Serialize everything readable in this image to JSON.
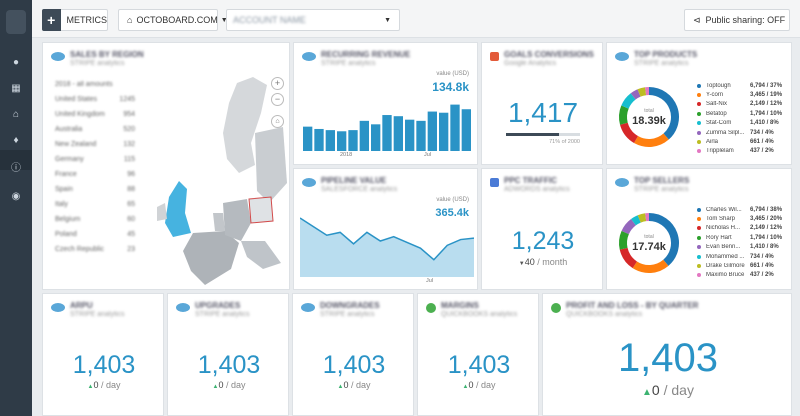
{
  "toolbar": {
    "metrics_label": "METRICS",
    "domain_label": "OCTOBOARD.COM",
    "account_label": "ACCOUNT NAME",
    "sharing_label": "Public sharing: OFF"
  },
  "cards": {
    "map": {
      "title": "SALES BY REGION",
      "subtitle": "STRIPE analytics"
    },
    "revenue": {
      "title": "RECURRING REVENUE",
      "subtitle": "STRIPE analytics",
      "value_label": "value (USD)",
      "value": "134.8k",
      "x_ticks": [
        "2018",
        "Jul"
      ]
    },
    "conversions": {
      "title": "GOALS CONVERSIONS",
      "subtitle": "Google Analytics",
      "value": "1,417",
      "progress_text": "71% of 2000",
      "progress_fraction": 0.71
    },
    "products": {
      "title": "TOP PRODUCTS",
      "subtitle": "STRIPE analytics",
      "total_label": "total",
      "total": "18.39k"
    },
    "pipeline": {
      "title": "PIPELINE VALUE",
      "subtitle": "SALESFORCE analytics",
      "value_label": "value (USD)",
      "value": "365.4k",
      "x_ticks": [
        "Jul"
      ]
    },
    "traffic": {
      "title": "PPC TRAFFIC",
      "subtitle": "ADWORDS analytics",
      "value": "1,243",
      "delta": "40",
      "unit": "/ month"
    },
    "sellers": {
      "title": "TOP SELLERS",
      "subtitle": "STRIPE analytics",
      "total_label": "total",
      "total": "17.74k"
    },
    "arpu": {
      "title": "ARPU",
      "subtitle": "STRIPE analytics",
      "value": "1,403",
      "delta": "0",
      "unit": "/ day"
    },
    "upgrades": {
      "title": "UPGRADES",
      "subtitle": "STRIPE analytics",
      "value": "1,403",
      "delta": "0",
      "unit": "/ day"
    },
    "downgrades": {
      "title": "DOWNGRADES",
      "subtitle": "STRIPE analytics",
      "value": "1,403",
      "delta": "0",
      "unit": "/ day"
    },
    "margins": {
      "title": "MARGINS",
      "subtitle": "QUICKBOOKS analytics",
      "value": "1,403",
      "delta": "0",
      "unit": "/ day"
    },
    "profit": {
      "title": "PROFIT AND LOSS - BY QUARTER",
      "subtitle": "QUICKBOOKS analytics",
      "value": "1,403",
      "delta": "0",
      "unit": "/ day"
    }
  },
  "map_regions": [
    {
      "name": "2018 - all amounts",
      "value": ""
    },
    {
      "name": "United States",
      "value": "1245"
    },
    {
      "name": "United Kingdom",
      "value": "954"
    },
    {
      "name": "Australia",
      "value": "520"
    },
    {
      "name": "New Zealand",
      "value": "132"
    },
    {
      "name": "Germany",
      "value": "115"
    },
    {
      "name": "France",
      "value": "96"
    },
    {
      "name": "Spain",
      "value": "88"
    },
    {
      "name": "Italy",
      "value": "65"
    },
    {
      "name": "Belgium",
      "value": "60"
    },
    {
      "name": "Poland",
      "value": "45"
    },
    {
      "name": "Czech Republic",
      "value": "23"
    }
  ],
  "products_legend": [
    {
      "name": "Toptough",
      "value": "6,794 / 37%",
      "color": "#1f77b4"
    },
    {
      "name": "Y-corn",
      "value": "3,465 / 19%",
      "color": "#ff7f0e"
    },
    {
      "name": "Salt-Nix",
      "value": "2,149 / 12%",
      "color": "#d62728"
    },
    {
      "name": "Betatop",
      "value": "1,794 / 10%",
      "color": "#2ca02c"
    },
    {
      "name": "Stat-Com",
      "value": "1,410 / 8%",
      "color": "#17becf"
    },
    {
      "name": "Zumma Silpl...",
      "value": "734 / 4%",
      "color": "#9467bd"
    },
    {
      "name": "Airla",
      "value": "661 / 4%",
      "color": "#bcbd22"
    },
    {
      "name": "Tripplelam",
      "value": "437 / 2%",
      "color": "#e377c2"
    }
  ],
  "sellers_legend": [
    {
      "name": "Charles Wil...",
      "value": "6,794 / 38%",
      "color": "#1f77b4"
    },
    {
      "name": "Tom Sharp",
      "value": "3,465 / 20%",
      "color": "#ff7f0e"
    },
    {
      "name": "Nicholas H...",
      "value": "2,149 / 12%",
      "color": "#d62728"
    },
    {
      "name": "Rory Hart",
      "value": "1,794 / 10%",
      "color": "#2ca02c"
    },
    {
      "name": "Evan Benn...",
      "value": "1,410 / 8%",
      "color": "#9467bd"
    },
    {
      "name": "Mohammed ...",
      "value": "734 / 4%",
      "color": "#17becf"
    },
    {
      "name": "Drake Gilmore",
      "value": "661 / 4%",
      "color": "#bcbd22"
    },
    {
      "name": "Maximo Bruce",
      "value": "437 / 2%",
      "color": "#e377c2"
    }
  ],
  "revenue_bars": [
    0.42,
    0.38,
    0.36,
    0.34,
    0.36,
    0.52,
    0.46,
    0.62,
    0.6,
    0.54,
    0.52,
    0.68,
    0.66,
    0.8,
    0.72
  ],
  "pipeline_line": [
    0.82,
    0.7,
    0.58,
    0.62,
    0.46,
    0.62,
    0.5,
    0.56,
    0.48,
    0.4,
    0.24,
    0.44,
    0.52,
    0.54
  ]
}
